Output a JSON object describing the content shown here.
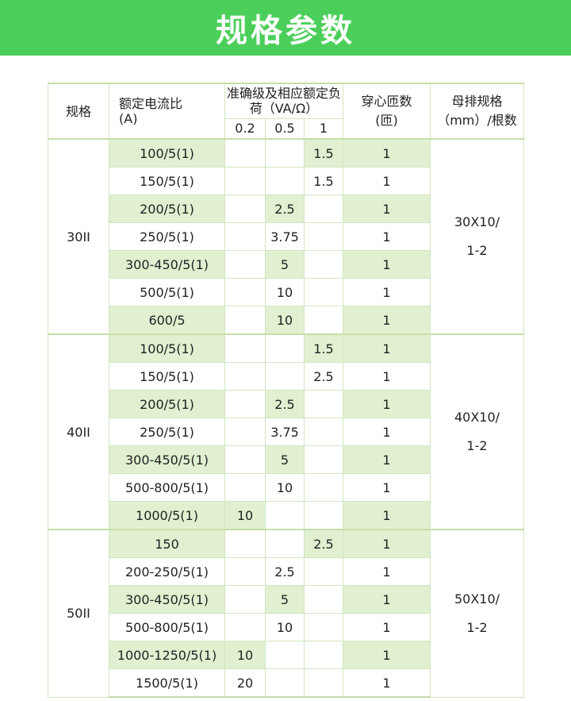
{
  "title": "规格参数",
  "headers": {
    "model": "规格",
    "ratio": "额定电流比\n(A)",
    "accuracy": "准确级及相应额定负荷（VA/Ω）",
    "acc_02": "0.2",
    "acc_05": "0.5",
    "acc_1": "1",
    "turns": "穿心匝数\n(匝)",
    "busbar": "母排规格\n（mm）/根数"
  },
  "groups": [
    {
      "model": "30II",
      "busbar": "30X10/\n1-2",
      "rows": [
        {
          "ratio": "100/5(1)",
          "c02": "",
          "c05": "",
          "c1": "1.5",
          "turns": "1"
        },
        {
          "ratio": "150/5(1)",
          "c02": "",
          "c05": "",
          "c1": "1.5",
          "turns": "1"
        },
        {
          "ratio": "200/5(1)",
          "c02": "",
          "c05": "2.5",
          "c1": "",
          "turns": "1"
        },
        {
          "ratio": "250/5(1)",
          "c02": "",
          "c05": "3.75",
          "c1": "",
          "turns": "1"
        },
        {
          "ratio": "300-450/5(1)",
          "c02": "",
          "c05": "5",
          "c1": "",
          "turns": "1"
        },
        {
          "ratio": "500/5(1)",
          "c02": "",
          "c05": "10",
          "c1": "",
          "turns": "1"
        },
        {
          "ratio": "600/5",
          "c02": "",
          "c05": "10",
          "c1": "",
          "turns": "1"
        }
      ]
    },
    {
      "model": "40II",
      "busbar": "40X10/\n1-2",
      "rows": [
        {
          "ratio": "100/5(1)",
          "c02": "",
          "c05": "",
          "c1": "1.5",
          "turns": "1"
        },
        {
          "ratio": "150/5(1)",
          "c02": "",
          "c05": "",
          "c1": "2.5",
          "turns": "1"
        },
        {
          "ratio": "200/5(1)",
          "c02": "",
          "c05": "2.5",
          "c1": "",
          "turns": "1"
        },
        {
          "ratio": "250/5(1)",
          "c02": "",
          "c05": "3.75",
          "c1": "",
          "turns": "1"
        },
        {
          "ratio": "300-450/5(1)",
          "c02": "",
          "c05": "5",
          "c1": "",
          "turns": "1"
        },
        {
          "ratio": "500-800/5(1)",
          "c02": "",
          "c05": "10",
          "c1": "",
          "turns": "1"
        },
        {
          "ratio": "1000/5(1)",
          "c02": "10",
          "c05": "",
          "c1": "",
          "turns": "1"
        }
      ]
    },
    {
      "model": "50II",
      "busbar": "50X10/\n1-2",
      "rows": [
        {
          "ratio": "150",
          "c02": "",
          "c05": "",
          "c1": "2.5",
          "turns": "1"
        },
        {
          "ratio": "200-250/5(1)",
          "c02": "",
          "c05": "2.5",
          "c1": "",
          "turns": "1"
        },
        {
          "ratio": "300-450/5(1)",
          "c02": "",
          "c05": "5",
          "c1": "",
          "turns": "1"
        },
        {
          "ratio": "500-800/5(1)",
          "c02": "",
          "c05": "10",
          "c1": "",
          "turns": "1"
        },
        {
          "ratio": "1000-1250/5(1)",
          "c02": "10",
          "c05": "",
          "c1": "",
          "turns": "1"
        },
        {
          "ratio": "1500/5(1)",
          "c02": "20",
          "c05": "",
          "c1": "",
          "turns": "1"
        }
      ]
    }
  ],
  "colors": {
    "banner": "#4ccf5a",
    "row_highlight": "#e0f0d0",
    "grid": "#d2e6c0"
  }
}
